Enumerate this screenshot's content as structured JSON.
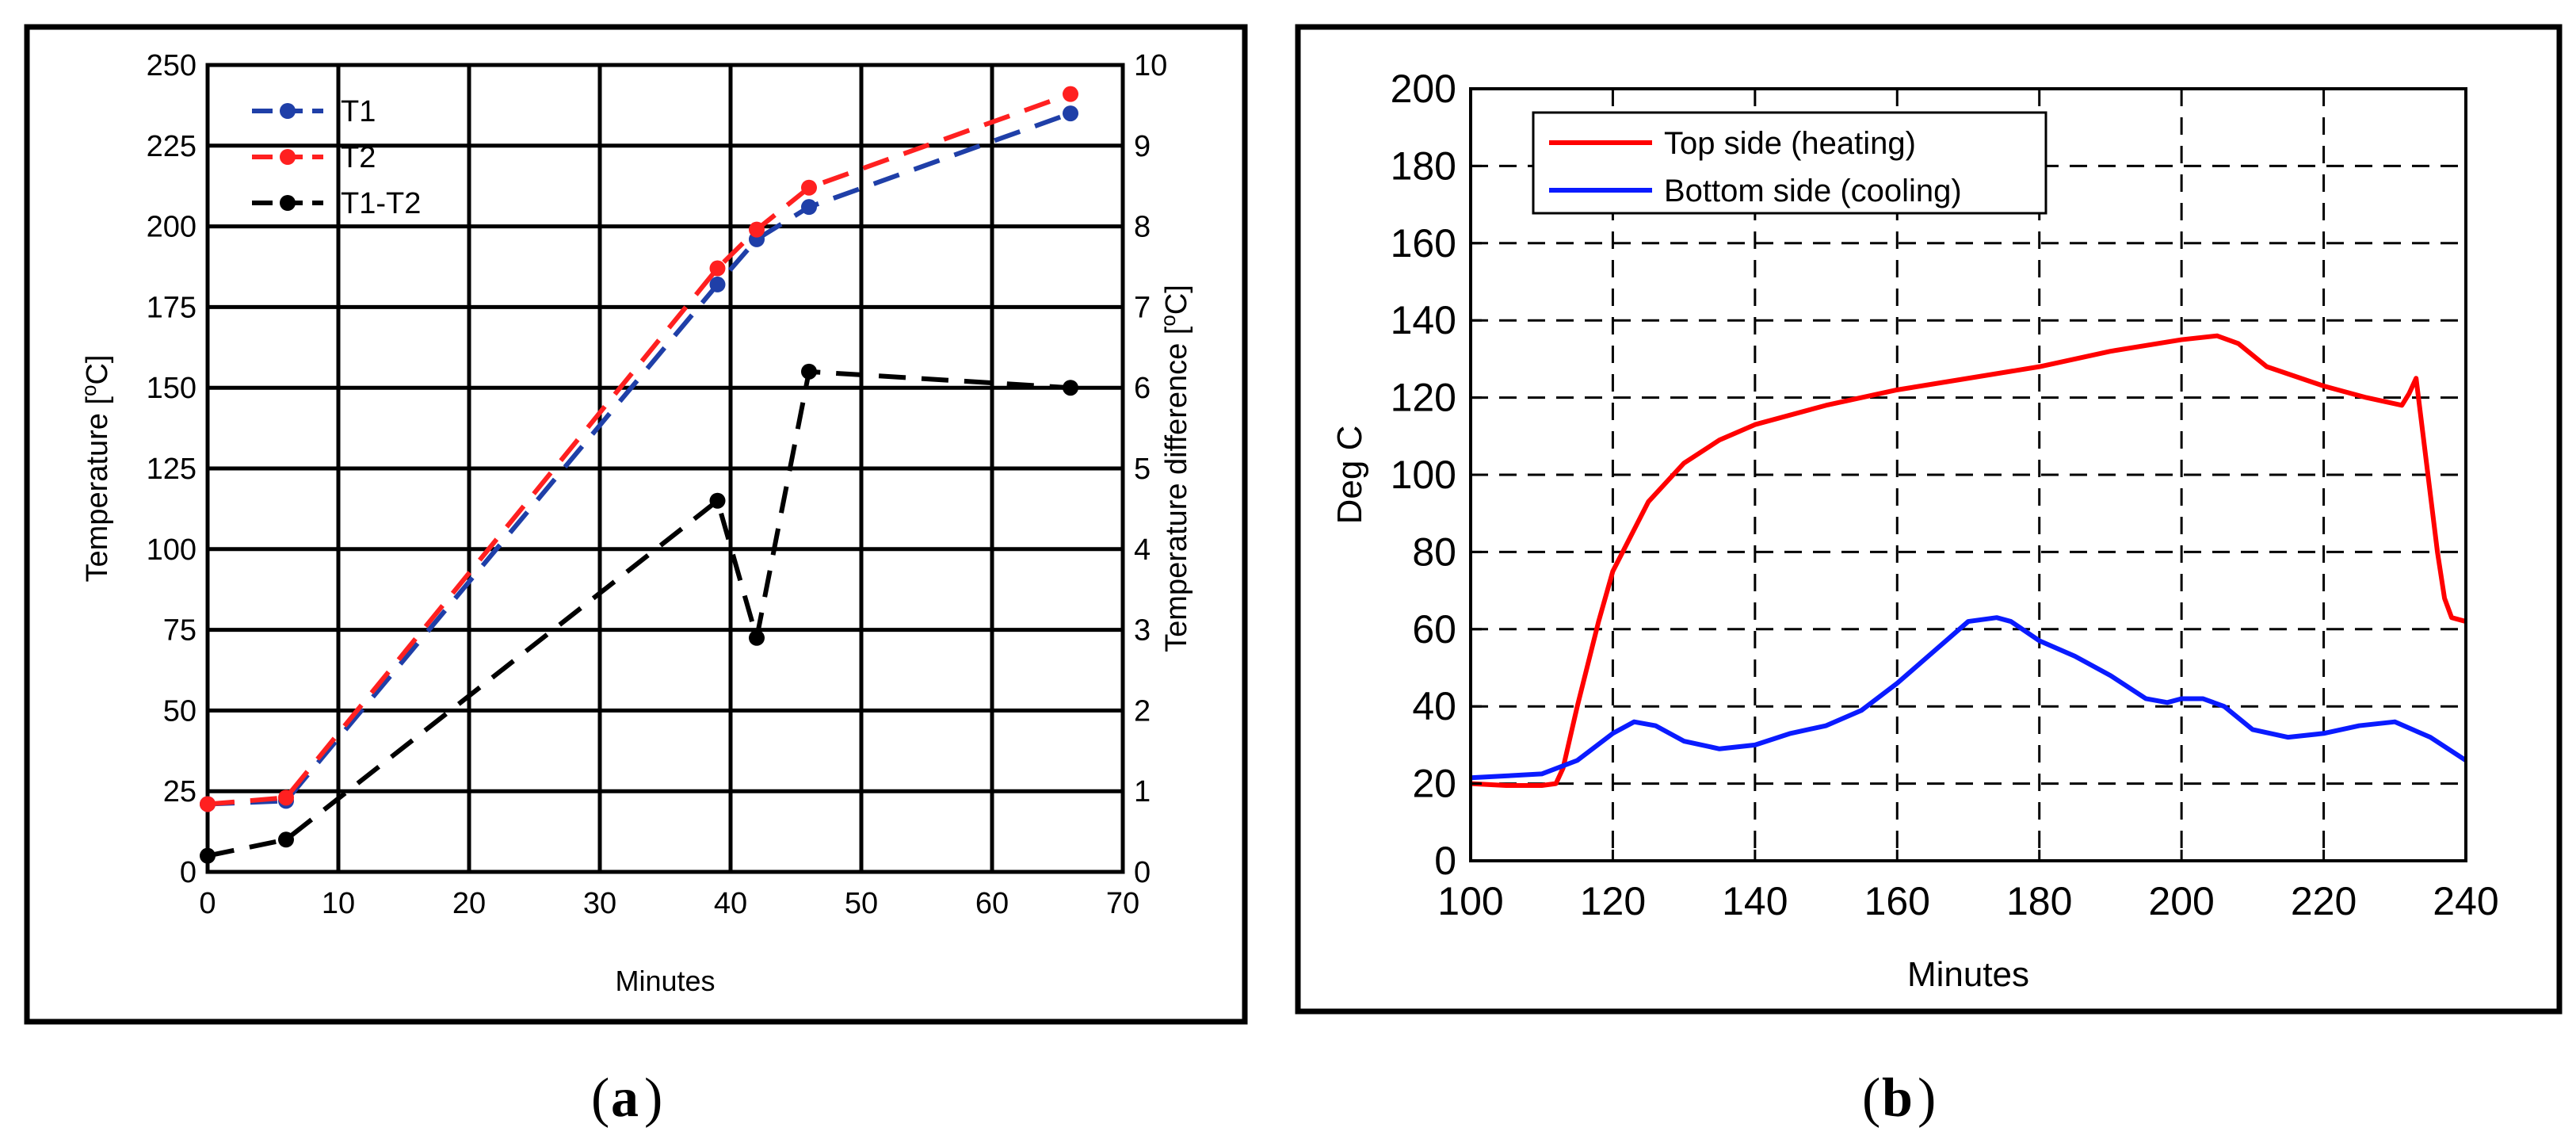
{
  "figure": {
    "panel_a_label": "a",
    "panel_b_label": "b"
  },
  "chart_data": [
    {
      "id": "a",
      "type": "line",
      "xlabel": "Minutes",
      "ylabel": "Temperature [°C]",
      "ylabel_right": "Temperature difference [°C]",
      "xlim": [
        0,
        70
      ],
      "ylim": [
        0,
        250
      ],
      "ylim_right": [
        0,
        10
      ],
      "xticks": [
        0,
        10,
        20,
        30,
        40,
        50,
        60,
        70
      ],
      "yticks": [
        0,
        25,
        50,
        75,
        100,
        125,
        150,
        175,
        200,
        225,
        250
      ],
      "yticks_right": [
        0,
        1,
        2,
        3,
        4,
        5,
        6,
        7,
        8,
        9,
        10
      ],
      "grid": true,
      "legend_position": "top-left",
      "series": [
        {
          "name": "T1",
          "axis": "left",
          "color": "#1f3fa8",
          "style": "dashed",
          "markers": true,
          "x": [
            0,
            6,
            39,
            42,
            46,
            66
          ],
          "y": [
            21,
            22,
            182,
            196,
            206,
            235
          ]
        },
        {
          "name": "T2",
          "axis": "left",
          "color": "#ff2020",
          "style": "dashed",
          "markers": true,
          "x": [
            0,
            6,
            39,
            42,
            46,
            66
          ],
          "y": [
            21,
            23,
            187,
            199,
            212,
            241
          ]
        },
        {
          "name": "T1-T2",
          "axis": "right",
          "color": "#000000",
          "style": "dashed",
          "markers": true,
          "x": [
            0,
            6,
            39,
            42,
            46,
            66
          ],
          "y": [
            0.2,
            0.4,
            4.6,
            2.9,
            6.2,
            6.0
          ]
        }
      ]
    },
    {
      "id": "b",
      "type": "line",
      "xlabel": "Minutes",
      "ylabel": "Deg C",
      "xlim": [
        100,
        240
      ],
      "ylim": [
        0,
        200
      ],
      "xticks": [
        100,
        120,
        140,
        160,
        180,
        200,
        220,
        240
      ],
      "yticks": [
        0,
        20,
        40,
        60,
        80,
        100,
        120,
        140,
        160,
        180,
        200
      ],
      "grid": true,
      "legend_position": "top-left",
      "series": [
        {
          "name": "Top side (heating)",
          "color": "#ff0000",
          "style": "solid",
          "x": [
            100,
            105,
            110,
            112,
            113,
            115,
            118,
            120,
            125,
            130,
            135,
            140,
            150,
            160,
            170,
            180,
            190,
            200,
            205,
            208,
            212,
            220,
            226,
            231,
            232,
            233,
            234,
            235,
            236,
            237,
            238,
            240
          ],
          "y": [
            20,
            19.5,
            19.5,
            20,
            24,
            40,
            62,
            75,
            93,
            103,
            109,
            113,
            118,
            122,
            125,
            128,
            132,
            135,
            136,
            134,
            128,
            123,
            120,
            118,
            121,
            125,
            110,
            95,
            80,
            68,
            63,
            62
          ]
        },
        {
          "name": "Bottom side (cooling)",
          "color": "#0a1bff",
          "style": "solid",
          "x": [
            100,
            105,
            110,
            115,
            120,
            123,
            126,
            130,
            135,
            140,
            145,
            150,
            155,
            160,
            165,
            170,
            174,
            176,
            180,
            185,
            190,
            195,
            198,
            200,
            203,
            206,
            210,
            215,
            220,
            225,
            230,
            235,
            240
          ],
          "y": [
            21.5,
            22,
            22.5,
            26,
            33,
            36,
            35,
            31,
            29,
            30,
            33,
            35,
            39,
            46,
            54,
            62,
            63,
            62,
            57,
            53,
            48,
            42,
            41,
            42,
            42,
            40,
            34,
            32,
            33,
            35,
            36,
            32,
            26
          ]
        }
      ]
    }
  ]
}
